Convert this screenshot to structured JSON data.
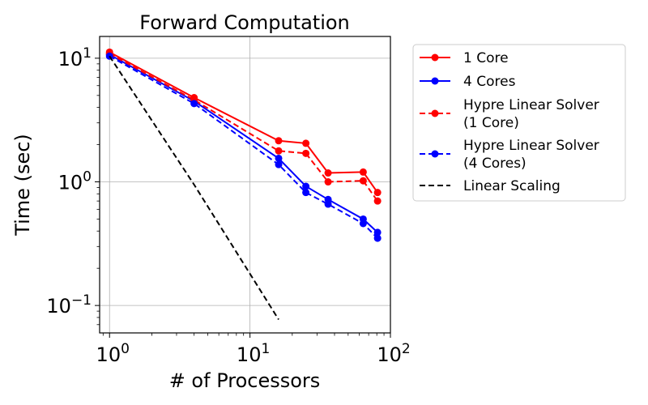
{
  "chart_data": {
    "type": "line",
    "title": "Forward Computation",
    "xlabel": "# of Processors",
    "ylabel": "Time (sec)",
    "xscale": "log",
    "yscale": "log",
    "xlim": [
      0.85,
      100
    ],
    "ylim": [
      0.06,
      15
    ],
    "grid": true,
    "legend_position": "outside-right",
    "x_ticks": [
      {
        "value": 1,
        "base": "10",
        "exp": "0"
      },
      {
        "value": 10,
        "base": "10",
        "exp": "1"
      },
      {
        "value": 100,
        "base": "10",
        "exp": "2"
      }
    ],
    "y_ticks": [
      {
        "value": 0.1,
        "base": "10",
        "exp": "−1"
      },
      {
        "value": 1,
        "base": "10",
        "exp": "0"
      },
      {
        "value": 10,
        "base": "10",
        "exp": "1"
      }
    ],
    "series": [
      {
        "name": "1 Core",
        "color": "#ff0000",
        "dashed": false,
        "marker": "circle",
        "x": [
          1,
          4,
          16,
          25,
          36,
          64,
          81
        ],
        "y": [
          11.2,
          4.8,
          2.15,
          2.05,
          1.18,
          1.2,
          0.82
        ]
      },
      {
        "name": "4 Cores",
        "color": "#0000ff",
        "dashed": false,
        "marker": "circle",
        "x": [
          1,
          4,
          16,
          25,
          36,
          64,
          81
        ],
        "y": [
          10.7,
          4.5,
          1.55,
          0.92,
          0.72,
          0.5,
          0.39
        ]
      },
      {
        "name": "Hypre Linear Solver\n(1 Core)",
        "color": "#ff0000",
        "dashed": true,
        "marker": "circle",
        "x": [
          1,
          4,
          16,
          25,
          36,
          64,
          81
        ],
        "y": [
          10.9,
          4.6,
          1.78,
          1.7,
          1.0,
          1.02,
          0.7
        ]
      },
      {
        "name": "Hypre Linear Solver\n(4 Cores)",
        "color": "#0000ff",
        "dashed": true,
        "marker": "circle",
        "x": [
          1,
          4,
          16,
          25,
          36,
          64,
          81
        ],
        "y": [
          10.4,
          4.3,
          1.38,
          0.82,
          0.66,
          0.46,
          0.35
        ]
      },
      {
        "name": "Linear Scaling",
        "color": "#000000",
        "dashed": true,
        "marker": "none",
        "x": [
          1,
          4,
          16
        ],
        "y": [
          10.4,
          0.95,
          0.077
        ]
      }
    ]
  }
}
